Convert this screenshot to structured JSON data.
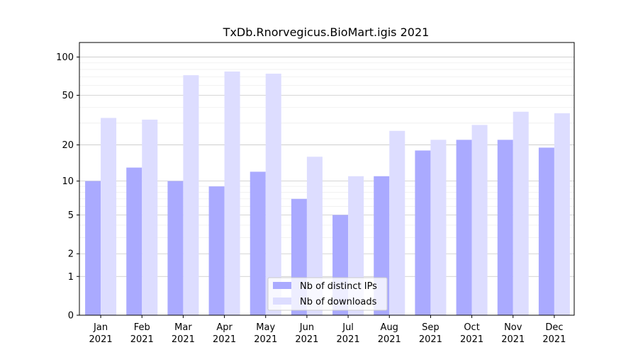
{
  "chart_data": {
    "type": "bar",
    "title": "TxDb.Rnorvegicus.BioMart.igis 2021",
    "xlabel": "",
    "ylabel": "",
    "yscale": "log1p",
    "ylim": [
      0,
      130
    ],
    "grid": true,
    "legend_position": "bottom-center",
    "categories": [
      [
        "Jan",
        "2021"
      ],
      [
        "Feb",
        "2021"
      ],
      [
        "Mar",
        "2021"
      ],
      [
        "Apr",
        "2021"
      ],
      [
        "May",
        "2021"
      ],
      [
        "Jun",
        "2021"
      ],
      [
        "Jul",
        "2021"
      ],
      [
        "Aug",
        "2021"
      ],
      [
        "Sep",
        "2021"
      ],
      [
        "Oct",
        "2021"
      ],
      [
        "Nov",
        "2021"
      ],
      [
        "Dec",
        "2021"
      ]
    ],
    "y_ticks": [
      0,
      1,
      2,
      5,
      10,
      20,
      50,
      100
    ],
    "series": [
      {
        "name": "Nb of distinct IPs",
        "color": "#aaaaff",
        "values": [
          10,
          13,
          10,
          9,
          12,
          7,
          5,
          11,
          18,
          22,
          22,
          19
        ]
      },
      {
        "name": "Nb of downloads",
        "color": "#ddddff",
        "values": [
          33,
          32,
          72,
          77,
          74,
          16,
          11,
          26,
          22,
          29,
          37,
          36
        ]
      }
    ]
  }
}
